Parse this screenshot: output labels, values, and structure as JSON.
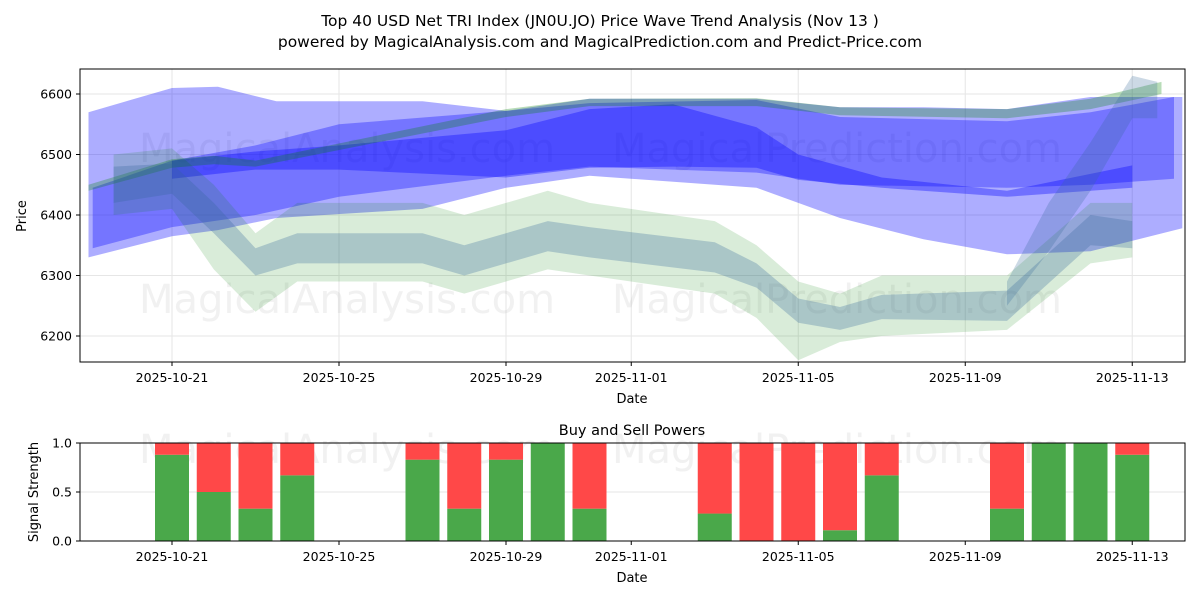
{
  "chart_data": [
    {
      "type": "area",
      "title": "Top 40 USD Net TRI Index (JN0U.JO) Price Wave Trend Analysis (Nov 13 )",
      "subtitle": "powered by MagicalAnalysis.com and MagicalPrediction.com and Predict-Price.com",
      "xlabel": "Date",
      "ylabel": "Price",
      "ylim": [
        6157,
        6641
      ],
      "xlim_days_from_2025_10_21": [
        -2.2,
        24.3
      ],
      "grid": true,
      "yticks": [
        "6200",
        "6300",
        "6400",
        "6500",
        "6600"
      ],
      "xticks": [
        {
          "label": "2025-10-21",
          "day": 0
        },
        {
          "label": "2025-10-25",
          "day": 4
        },
        {
          "label": "2025-10-29",
          "day": 8
        },
        {
          "label": "2025-11-01",
          "day": 11
        },
        {
          "label": "2025-11-05",
          "day": 15
        },
        {
          "label": "2025-11-09",
          "day": 19
        },
        {
          "label": "2025-11-13",
          "day": 23
        }
      ],
      "bands": [
        {
          "name": "wide-blue-band",
          "color": "#0000ff",
          "alpha": 0.32,
          "x": [
            -2,
            0,
            1.1,
            2.5,
            6,
            8,
            10,
            14,
            16,
            18,
            20,
            22,
            24.2
          ],
          "upper": [
            6570,
            6610,
            6612,
            6588,
            6588,
            6572,
            6592,
            6592,
            6578,
            6578,
            6575,
            6595,
            6595
          ],
          "lower": [
            6330,
            6365,
            6375,
            6395,
            6410,
            6445,
            6465,
            6445,
            6395,
            6360,
            6335,
            6340,
            6378
          ]
        },
        {
          "name": "mid-blue-band",
          "color": "#0000ff",
          "alpha": 0.32,
          "x": [
            -1.9,
            0,
            2,
            4,
            8,
            10,
            14,
            16,
            20,
            22,
            24
          ],
          "upper": [
            6445,
            6490,
            6515,
            6550,
            6572,
            6585,
            6590,
            6562,
            6555,
            6570,
            6595
          ],
          "lower": [
            6345,
            6380,
            6400,
            6430,
            6465,
            6480,
            6470,
            6450,
            6445,
            6450,
            6460
          ]
        },
        {
          "name": "core-blue-band",
          "color": "#0000ff",
          "alpha": 0.35,
          "x": [
            0,
            2,
            4,
            8,
            10,
            12,
            14,
            15,
            17,
            20,
            23
          ],
          "upper": [
            6490,
            6505,
            6515,
            6540,
            6575,
            6583,
            6545,
            6500,
            6462,
            6440,
            6482
          ],
          "lower": [
            6460,
            6475,
            6475,
            6462,
            6478,
            6480,
            6478,
            6458,
            6445,
            6430,
            6445
          ]
        },
        {
          "name": "upper-green-band",
          "color": "#008000",
          "alpha": 0.28,
          "x": [
            -2,
            0,
            1,
            2,
            8,
            10,
            14,
            16,
            20,
            22,
            23.7
          ],
          "upper": [
            6450,
            6492,
            6498,
            6490,
            6575,
            6592,
            6593,
            6578,
            6575,
            6592,
            6620
          ],
          "lower": [
            6440,
            6478,
            6484,
            6480,
            6562,
            6580,
            6580,
            6565,
            6560,
            6575,
            6600
          ]
        },
        {
          "name": "price-green-band",
          "color": "#008000",
          "alpha": 0.15,
          "x": [
            -1.4,
            0,
            1,
            2,
            3,
            6,
            7,
            8,
            9,
            10,
            13,
            14,
            15,
            16,
            17,
            20,
            22,
            23
          ],
          "upper": [
            6500,
            6510,
            6450,
            6370,
            6420,
            6420,
            6400,
            6420,
            6440,
            6420,
            6390,
            6350,
            6290,
            6270,
            6300,
            6300,
            6420,
            6420
          ],
          "lower": [
            6400,
            6410,
            6310,
            6240,
            6290,
            6290,
            6270,
            6290,
            6310,
            6300,
            6270,
            6230,
            6160,
            6190,
            6200,
            6210,
            6320,
            6330
          ]
        },
        {
          "name": "price-gray-band",
          "color": "#336699",
          "alpha": 0.28,
          "x": [
            -1.4,
            0,
            1,
            2,
            3,
            6,
            7,
            8,
            9,
            10,
            13,
            14,
            15,
            16,
            17,
            20,
            22,
            23
          ],
          "upper": [
            6480,
            6485,
            6420,
            6345,
            6370,
            6370,
            6350,
            6370,
            6390,
            6380,
            6355,
            6320,
            6262,
            6248,
            6268,
            6275,
            6400,
            6390
          ],
          "lower": [
            6420,
            6435,
            6370,
            6300,
            6320,
            6320,
            6300,
            6320,
            6340,
            6330,
            6305,
            6280,
            6222,
            6210,
            6228,
            6225,
            6350,
            6345
          ]
        },
        {
          "name": "rising-end-band",
          "color": "#336699",
          "alpha": 0.25,
          "x": [
            20,
            21,
            22,
            23,
            23.6
          ],
          "upper": [
            6290,
            6420,
            6520,
            6630,
            6620
          ],
          "lower": [
            6250,
            6340,
            6440,
            6560,
            6560
          ]
        }
      ]
    },
    {
      "type": "bar",
      "title": "Buy and Sell Powers",
      "xlabel": "Date",
      "ylabel": "Signal Strength",
      "ylim": [
        0,
        1
      ],
      "yticks": [
        "0.0",
        "0.5",
        "1.0"
      ],
      "xticks": [
        {
          "label": "2025-10-21",
          "day": 0
        },
        {
          "label": "2025-10-25",
          "day": 4
        },
        {
          "label": "2025-10-29",
          "day": 8
        },
        {
          "label": "2025-11-01",
          "day": 11
        },
        {
          "label": "2025-11-05",
          "day": 15
        },
        {
          "label": "2025-11-09",
          "day": 19
        },
        {
          "label": "2025-11-13",
          "day": 23
        }
      ],
      "categories": [
        "2025-10-21",
        "2025-10-22",
        "2025-10-23",
        "2025-10-24",
        "2025-10-27",
        "2025-10-28",
        "2025-10-29",
        "2025-10-30",
        "2025-10-31",
        "2025-11-03",
        "2025-11-04",
        "2025-11-05",
        "2025-11-06",
        "2025-11-07",
        "2025-11-10",
        "2025-11-11",
        "2025-11-12",
        "2025-11-13"
      ],
      "days": [
        0,
        1,
        2,
        3,
        6,
        7,
        8,
        9,
        10,
        13,
        14,
        15,
        16,
        17,
        20,
        21,
        22,
        23
      ],
      "series": [
        {
          "name": "Buy",
          "color": "#4aa84a",
          "values": [
            0.88,
            0.5,
            0.33,
            0.67,
            0.83,
            0.33,
            0.83,
            1.0,
            0.33,
            0.28,
            0.0,
            0.0,
            0.11,
            0.67,
            0.33,
            1.0,
            1.0,
            0.88
          ]
        },
        {
          "name": "Sell",
          "color": "#ff4848",
          "values": [
            0.12,
            0.5,
            0.67,
            0.33,
            0.17,
            0.67,
            0.17,
            0.0,
            0.67,
            0.72,
            1.0,
            1.0,
            0.89,
            0.33,
            0.67,
            0.0,
            0.0,
            0.12
          ]
        }
      ]
    }
  ],
  "watermarks": {
    "left": "MagicalAnalysis.com",
    "right": "MagicalPrediction.com"
  }
}
